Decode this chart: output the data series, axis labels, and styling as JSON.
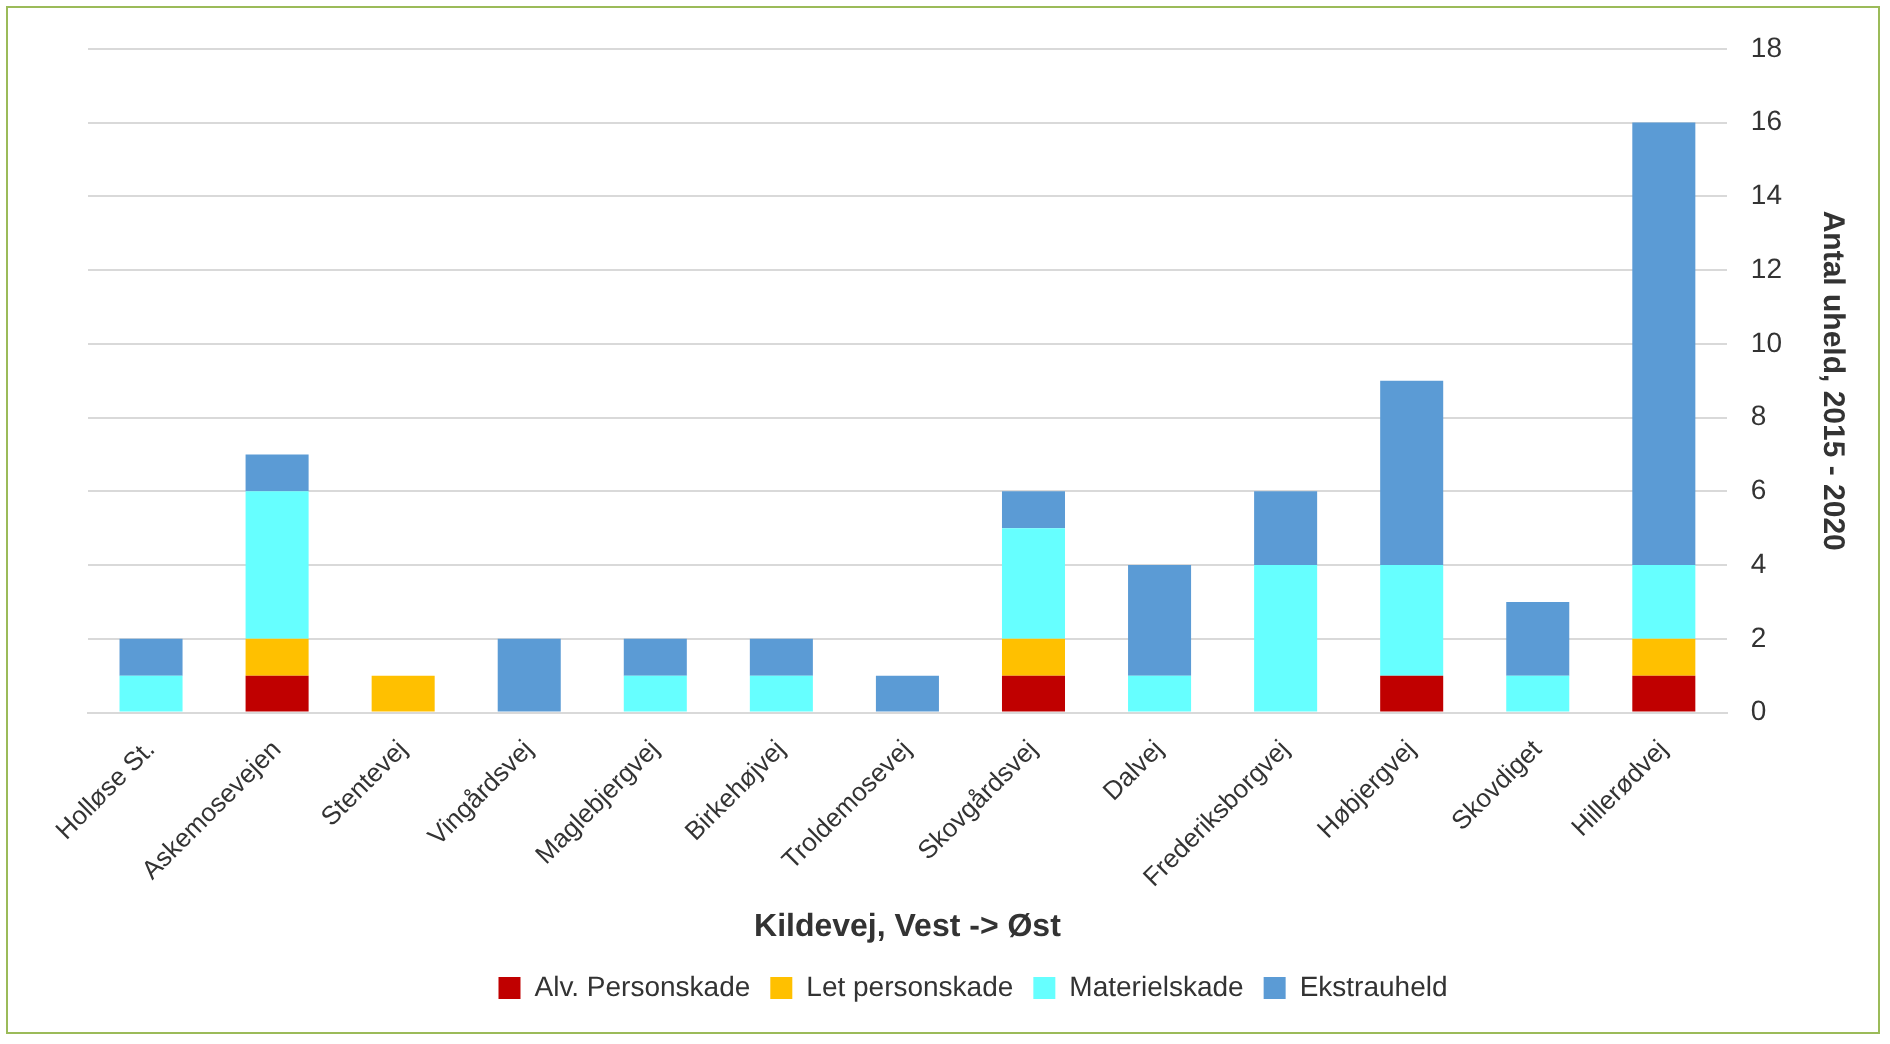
{
  "chart_data": {
    "type": "bar",
    "stacked": true,
    "xlabel": "Kildevej, Vest -> Øst",
    "ylabel": "Antal uheld, 2015 - 2020",
    "categories": [
      "Holløse St.",
      "Askemosevejen",
      "Stentevej",
      "Vingårdsvej",
      "Maglebjergvej",
      "Birkehøjvej",
      "Troldemosevej",
      "Skovgårdsvej",
      "Dalvej",
      "Frederiksborgvej",
      "Høbjergvej",
      "Skovdiget",
      "Hillerødvej"
    ],
    "series": [
      {
        "name": "Alv. Personskade",
        "color": "#c00000",
        "values": [
          0,
          1,
          0,
          0,
          0,
          0,
          0,
          1,
          0,
          0,
          1,
          0,
          1
        ]
      },
      {
        "name": "Let personskade",
        "color": "#ffc000",
        "values": [
          0,
          1,
          1,
          0,
          0,
          0,
          0,
          1,
          0,
          0,
          0,
          0,
          1
        ]
      },
      {
        "name": "Materielskade",
        "color": "#66ffff",
        "values": [
          1,
          4,
          0,
          0,
          1,
          1,
          0,
          3,
          1,
          4,
          3,
          1,
          2
        ]
      },
      {
        "name": "Ekstrauheld",
        "color": "#5b9bd5",
        "values": [
          1,
          1,
          0,
          2,
          1,
          1,
          1,
          1,
          3,
          2,
          5,
          2,
          12
        ]
      }
    ],
    "ylim": [
      0,
      18
    ],
    "yticks": [
      0,
      2,
      4,
      6,
      8,
      10,
      12,
      14,
      16,
      18
    ],
    "grid": "y",
    "legend": "bottom"
  }
}
